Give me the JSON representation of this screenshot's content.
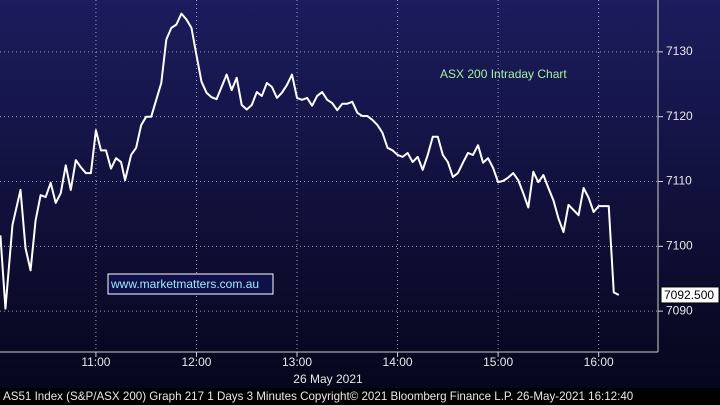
{
  "chart_data": {
    "type": "line",
    "color": "#ffffff",
    "xlim": [
      10.046,
      16.59
    ],
    "ylim": [
      7083.7,
      7138.0
    ],
    "xticks": [
      {
        "value": 11,
        "label": "11:00"
      },
      {
        "value": 12,
        "label": "12:00"
      },
      {
        "value": 13,
        "label": "13:00"
      },
      {
        "value": 14,
        "label": "14:00"
      },
      {
        "value": 15,
        "label": "15:00"
      },
      {
        "value": 16,
        "label": "16:00"
      }
    ],
    "yticks": [
      7090,
      7100,
      7110,
      7120,
      7130
    ],
    "grid": true,
    "x": [
      10.05,
      10.1,
      10.17,
      10.25,
      10.3,
      10.35,
      10.4,
      10.45,
      10.5,
      10.55,
      10.6,
      10.65,
      10.7,
      10.75,
      10.8,
      10.85,
      10.9,
      10.95,
      11.0,
      11.05,
      11.1,
      11.15,
      11.2,
      11.25,
      11.29,
      11.35,
      11.4,
      11.45,
      11.5,
      11.55,
      11.6,
      11.65,
      11.7,
      11.75,
      11.8,
      11.85,
      11.9,
      11.95,
      12.0,
      12.05,
      12.1,
      12.15,
      12.2,
      12.25,
      12.3,
      12.35,
      12.4,
      12.45,
      12.5,
      12.55,
      12.6,
      12.65,
      12.7,
      12.75,
      12.8,
      12.85,
      12.9,
      12.95,
      13.0,
      13.05,
      13.1,
      13.15,
      13.2,
      13.25,
      13.3,
      13.35,
      13.4,
      13.45,
      13.5,
      13.55,
      13.6,
      13.65,
      13.7,
      13.75,
      13.8,
      13.85,
      13.9,
      13.95,
      14.0,
      14.05,
      14.1,
      14.15,
      14.2,
      14.25,
      14.3,
      14.35,
      14.4,
      14.45,
      14.5,
      14.55,
      14.6,
      14.65,
      14.7,
      14.75,
      14.8,
      14.85,
      14.9,
      14.95,
      15.0,
      15.05,
      15.1,
      15.15,
      15.2,
      15.25,
      15.3,
      15.35,
      15.4,
      15.45,
      15.5,
      15.55,
      15.6,
      15.65,
      15.7,
      15.75,
      15.8,
      15.85,
      15.9,
      15.95,
      16.0,
      16.05,
      16.1,
      16.15,
      16.2
    ],
    "values": [
      7101.7,
      7090.4,
      7103.3,
      7108.7,
      7099.7,
      7096.3,
      7104.0,
      7107.9,
      7107.6,
      7109.8,
      7106.7,
      7108.2,
      7112.5,
      7108.7,
      7113.3,
      7112.2,
      7111.3,
      7111.3,
      7117.9,
      7114.8,
      7114.8,
      7112.0,
      7113.6,
      7113.0,
      7110.2,
      7114.1,
      7115.2,
      7118.7,
      7120.0,
      7120.0,
      7122.6,
      7125.2,
      7131.9,
      7133.7,
      7134.2,
      7135.9,
      7135.0,
      7133.7,
      7129.5,
      7125.4,
      7123.7,
      7123.0,
      7122.7,
      7124.6,
      7126.5,
      7124.1,
      7126.0,
      7121.8,
      7121.1,
      7121.8,
      7123.8,
      7123.2,
      7125.2,
      7124.6,
      7122.9,
      7123.7,
      7124.9,
      7126.5,
      7122.9,
      7122.6,
      7122.9,
      7121.7,
      7123.2,
      7123.8,
      7122.6,
      7122.1,
      7121.0,
      7122.0,
      7122.0,
      7122.3,
      7120.6,
      7120.1,
      7120.1,
      7119.5,
      7118.7,
      7117.5,
      7115.2,
      7114.8,
      7114.1,
      7113.8,
      7114.4,
      7113.0,
      7113.8,
      7111.8,
      7114.1,
      7116.9,
      7116.9,
      7114.1,
      7113.0,
      7110.7,
      7111.3,
      7112.9,
      7114.4,
      7114.1,
      7115.6,
      7112.9,
      7113.6,
      7112.1,
      7109.9,
      7110.1,
      7110.6,
      7111.3,
      7110.2,
      7108.2,
      7106.0,
      7111.5,
      7109.9,
      7111.0,
      7109.0,
      7107.1,
      7104.3,
      7102.2,
      7106.4,
      7105.6,
      7104.8,
      7109.0,
      7107.5,
      7105.3,
      7106.2,
      7106.2,
      7106.2,
      7092.9,
      7092.5
    ],
    "last_label": "7092.500",
    "date_label": "26 May 2021",
    "annotations": [
      "ASX 200 Intraday Chart",
      "www.marketmatters.com.au"
    ],
    "footer": "AS51 Index (S&P/ASX 200) Graph 217 1 Days 3 Minutes Copyright© 2021 Bloomberg Finance L.P. 26-May-2021 16:12:40"
  }
}
